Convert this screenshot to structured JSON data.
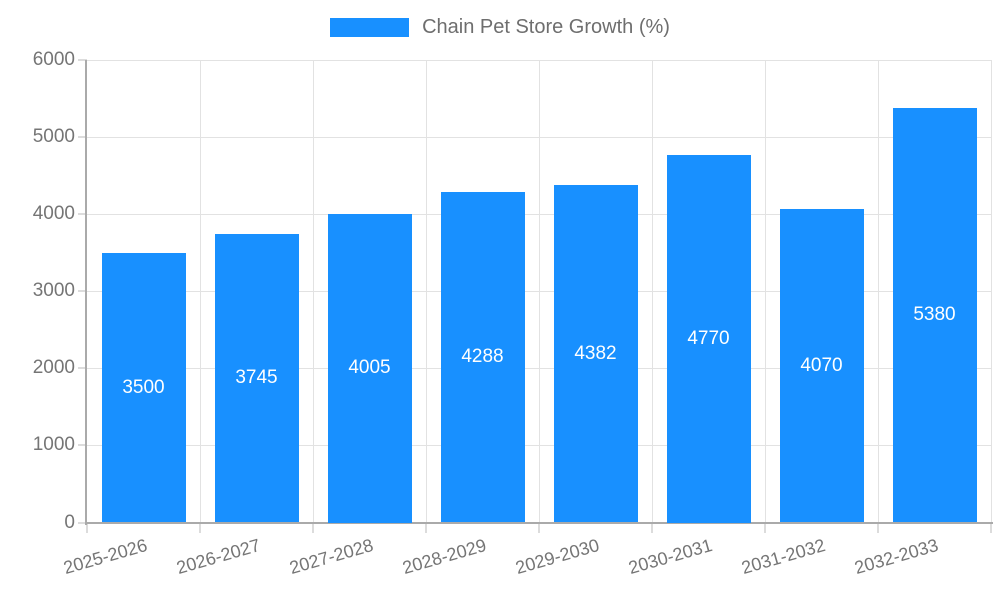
{
  "legend": {
    "label": "Chain Pet Store Growth (%)"
  },
  "chart_data": {
    "type": "bar",
    "title": "Chain Pet Store Growth (%)",
    "categories": [
      "2025-2026",
      "2026-2027",
      "2027-2028",
      "2028-2029",
      "2029-2030",
      "2030-2031",
      "2031-2032",
      "2032-2033"
    ],
    "values": [
      3500,
      3745,
      4005,
      4288,
      4382,
      4770,
      4070,
      5380
    ],
    "xlabel": "",
    "ylabel": "",
    "ylim": [
      0,
      6000
    ],
    "yticks": [
      0,
      1000,
      2000,
      3000,
      4000,
      5000,
      6000
    ],
    "grid": true,
    "legend_position": "top",
    "value_labels": "inside-center"
  },
  "colors": {
    "bar": "#1890ff",
    "axis": "#aaaaaa",
    "grid": "#e2e2e2",
    "tick": "#dcdcdc",
    "tick_label": "#757575",
    "legend_text": "#6e6e6e",
    "value_label": "#ffffff",
    "background": "#ffffff"
  }
}
